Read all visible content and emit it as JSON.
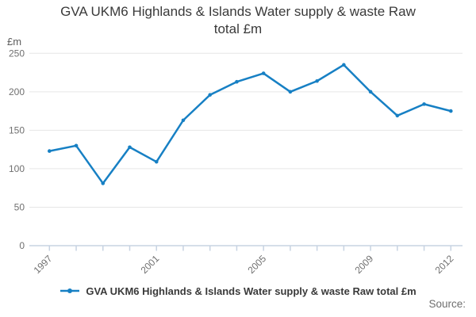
{
  "header": {
    "title_line1": "GVA UKM6 Highlands & Islands Water supply & waste Raw",
    "title_line2": "total £m"
  },
  "y_axis_unit_label": "£m",
  "legend": {
    "label": "GVA UKM6 Highlands & Islands Water supply & waste Raw total £m"
  },
  "footer": {
    "source_label": "Source:"
  },
  "colors": {
    "line": "#1780C4",
    "grid": "#e6e6e6",
    "axis": "#c7d3e2",
    "tick_label": "#707070",
    "title_text": "#3a3a3a",
    "legend_text": "#3a3a3a",
    "source_text": "#6e6e6e",
    "background": "#ffffff"
  },
  "chart_data": {
    "type": "line",
    "title": "GVA UKM6 Highlands & Islands Water supply & waste Raw total £m",
    "x": [
      1997,
      1998,
      1999,
      2000,
      2001,
      2002,
      2003,
      2004,
      2005,
      2006,
      2007,
      2008,
      2009,
      2010,
      2011,
      2012
    ],
    "series": [
      {
        "name": "GVA UKM6 Highlands & Islands Water supply & waste Raw total £m",
        "values": [
          123,
          130,
          81,
          128,
          109,
          163,
          196,
          213,
          224,
          200,
          214,
          235,
          200,
          169,
          184,
          175
        ]
      }
    ],
    "xlabel": "",
    "ylabel": "£m",
    "ylim": [
      0,
      250
    ],
    "yticks": [
      0,
      50,
      100,
      150,
      200,
      250
    ],
    "xtick_labels_shown": [
      "1997",
      "2001",
      "2005",
      "2009",
      "2012"
    ],
    "grid": "horizontal",
    "legend_position": "bottom",
    "marker": "circle"
  }
}
